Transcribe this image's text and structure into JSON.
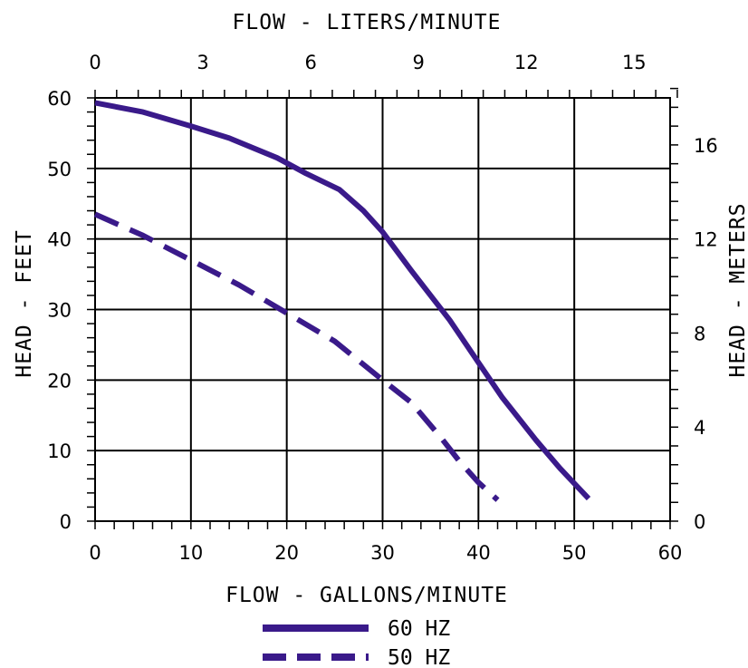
{
  "chart_data": {
    "type": "line",
    "x_bottom": {
      "label": "FLOW - GALLONS/MINUTE",
      "range": [
        0,
        60
      ],
      "ticks": [
        0,
        10,
        20,
        30,
        40,
        50,
        60
      ],
      "minor_step": 2
    },
    "x_top": {
      "label": "FLOW - LITERS/MINUTE",
      "range": [
        0,
        16
      ],
      "ticks": [
        0,
        3,
        6,
        9,
        12,
        15
      ],
      "minor_step": 0.6
    },
    "y_left": {
      "label": "HEAD - FEET",
      "range": [
        0,
        60
      ],
      "ticks": [
        0,
        10,
        20,
        30,
        40,
        50,
        60
      ],
      "minor_step": 2
    },
    "y_right": {
      "label": "HEAD - METERS",
      "range": [
        0,
        18
      ],
      "ticks": [
        0,
        4,
        8,
        12,
        16
      ],
      "minor_step": 0.8
    },
    "grid": true,
    "legend_position": "bottom-center",
    "series": [
      {
        "name": "60 HZ",
        "style": "solid",
        "color": "#3a1a8a",
        "points": [
          [
            0,
            59.3
          ],
          [
            5,
            58
          ],
          [
            10,
            56
          ],
          [
            14,
            54.3
          ],
          [
            19,
            51.5
          ],
          [
            22,
            49.3
          ],
          [
            25.5,
            47
          ],
          [
            28,
            44
          ],
          [
            30,
            41
          ],
          [
            33,
            35.5
          ],
          [
            37,
            28.5
          ],
          [
            40,
            22.5
          ],
          [
            42.5,
            17.5
          ],
          [
            46,
            11.5
          ],
          [
            48.5,
            7.5
          ],
          [
            51.5,
            3.2
          ]
        ]
      },
      {
        "name": "50 HZ",
        "style": "dashed",
        "color": "#3a1a8a",
        "points": [
          [
            0,
            43.5
          ],
          [
            5,
            40.5
          ],
          [
            10,
            37
          ],
          [
            15,
            33.5
          ],
          [
            20,
            29.5
          ],
          [
            25,
            25.5
          ],
          [
            30,
            20
          ],
          [
            33,
            16.8
          ],
          [
            36,
            12
          ],
          [
            38,
            8.5
          ],
          [
            40,
            5.5
          ],
          [
            42,
            3
          ]
        ]
      }
    ]
  }
}
